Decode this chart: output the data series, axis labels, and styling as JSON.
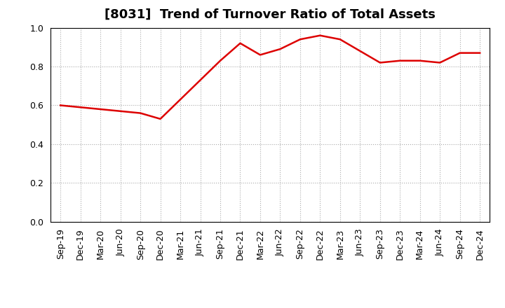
{
  "title": "[8031]  Trend of Turnover Ratio of Total Assets",
  "x_labels": [
    "Sep-19",
    "Dec-19",
    "Mar-20",
    "Jun-20",
    "Sep-20",
    "Dec-20",
    "Mar-21",
    "Jun-21",
    "Sep-21",
    "Dec-21",
    "Mar-22",
    "Jun-22",
    "Sep-22",
    "Dec-22",
    "Mar-23",
    "Jun-23",
    "Sep-23",
    "Dec-23",
    "Mar-24",
    "Jun-24",
    "Sep-24",
    "Dec-24"
  ],
  "y_values": [
    0.6,
    0.59,
    0.58,
    0.57,
    0.56,
    0.53,
    0.63,
    0.73,
    0.83,
    0.92,
    0.86,
    0.89,
    0.94,
    0.96,
    0.94,
    0.88,
    0.82,
    0.83,
    0.83,
    0.82,
    0.87,
    0.87
  ],
  "line_color": "#dd0000",
  "line_width": 1.8,
  "ylim": [
    0.0,
    1.0
  ],
  "yticks": [
    0.0,
    0.2,
    0.4,
    0.6,
    0.8,
    1.0
  ],
  "background_color": "#ffffff",
  "grid_color": "#aaaaaa",
  "title_fontsize": 13,
  "tick_fontsize": 9
}
